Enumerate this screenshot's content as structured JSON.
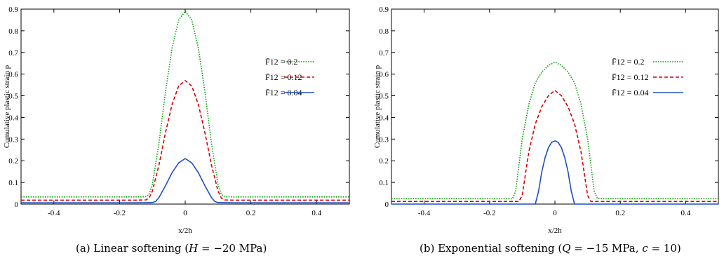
{
  "figure": {
    "captions": [
      {
        "prefix": "(a) Linear softening (",
        "var": "H",
        "rest": " = −20 MPa)"
      },
      {
        "prefix": "(b) Exponential softening (",
        "var": "Q",
        "rest": " = −15 MPa, ",
        "var2": "c",
        "rest2": " = 10)"
      }
    ]
  },
  "chart_data": [
    {
      "type": "line",
      "xlabel": "x/2h",
      "ylabel": "Cumulative plastic strain p",
      "xlim": [
        -0.5,
        0.5
      ],
      "ylim": [
        0,
        0.9
      ],
      "xticks": [
        "-0.4",
        "-0.2",
        "0",
        "0.2",
        "0.4"
      ],
      "yticks": [
        "0",
        "0.1",
        "0.2",
        "0.3",
        "0.4",
        "0.5",
        "0.6",
        "0.7",
        "0.8",
        "0.9"
      ],
      "grid": false,
      "legend_position": "right",
      "series": [
        {
          "name": "F̄12 = 0.2",
          "color": "#00a000",
          "dash": "dotted",
          "x": [
            -0.5,
            -0.15,
            -0.12,
            -0.11,
            -0.1,
            -0.08,
            -0.06,
            -0.04,
            -0.02,
            0,
            0.02,
            0.04,
            0.06,
            0.08,
            0.1,
            0.11,
            0.12,
            0.15,
            0.5
          ],
          "y": [
            0.033,
            0.033,
            0.034,
            0.045,
            0.09,
            0.28,
            0.52,
            0.72,
            0.85,
            0.89,
            0.85,
            0.72,
            0.52,
            0.28,
            0.09,
            0.045,
            0.034,
            0.033,
            0.033
          ]
        },
        {
          "name": "F̄12 = 0.12",
          "color": "#d40000",
          "dash": "dashed",
          "x": [
            -0.5,
            -0.15,
            -0.12,
            -0.11,
            -0.1,
            -0.08,
            -0.06,
            -0.04,
            -0.02,
            0,
            0.02,
            0.04,
            0.06,
            0.08,
            0.1,
            0.11,
            0.12,
            0.15,
            0.5
          ],
          "y": [
            0.018,
            0.018,
            0.019,
            0.028,
            0.06,
            0.18,
            0.33,
            0.46,
            0.545,
            0.57,
            0.545,
            0.46,
            0.33,
            0.18,
            0.06,
            0.028,
            0.019,
            0.018,
            0.018
          ]
        },
        {
          "name": "F̄12 = 0.04",
          "color": "#1f4fc0",
          "dash": "solid",
          "x": [
            -0.5,
            -0.15,
            -0.1,
            -0.09,
            -0.08,
            -0.06,
            -0.04,
            -0.02,
            0,
            0.02,
            0.04,
            0.06,
            0.08,
            0.09,
            0.1,
            0.15,
            0.5
          ],
          "y": [
            0.006,
            0.006,
            0.007,
            0.012,
            0.03,
            0.085,
            0.145,
            0.19,
            0.21,
            0.19,
            0.145,
            0.085,
            0.03,
            0.012,
            0.007,
            0.006,
            0.006
          ]
        }
      ]
    },
    {
      "type": "line",
      "xlabel": "x/2h",
      "ylabel": "Cumulative plastic strain p",
      "xlim": [
        -0.5,
        0.5
      ],
      "ylim": [
        0,
        0.9
      ],
      "xticks": [
        "-0.4",
        "-0.2",
        "0",
        "0.2",
        "0.4"
      ],
      "yticks": [
        "0",
        "0.1",
        "0.2",
        "0.3",
        "0.4",
        "0.5",
        "0.6",
        "0.7",
        "0.8",
        "0.9"
      ],
      "grid": false,
      "legend_position": "right",
      "series": [
        {
          "name": "F̄12 = 0.2",
          "color": "#00a000",
          "dash": "dotted",
          "x": [
            -0.5,
            -0.13,
            -0.12,
            -0.1,
            -0.08,
            -0.06,
            -0.04,
            -0.02,
            0,
            0.02,
            0.04,
            0.06,
            0.08,
            0.1,
            0.12,
            0.13,
            0.5
          ],
          "y": [
            0.025,
            0.025,
            0.06,
            0.3,
            0.46,
            0.56,
            0.61,
            0.64,
            0.655,
            0.64,
            0.61,
            0.56,
            0.46,
            0.3,
            0.06,
            0.025,
            0.025
          ]
        },
        {
          "name": "F̄12 = 0.12",
          "color": "#d40000",
          "dash": "dashed",
          "x": [
            -0.5,
            -0.11,
            -0.1,
            -0.09,
            -0.08,
            -0.06,
            -0.04,
            -0.02,
            0,
            0.02,
            0.04,
            0.06,
            0.08,
            0.09,
            0.1,
            0.11,
            0.5
          ],
          "y": [
            0.012,
            0.012,
            0.04,
            0.14,
            0.24,
            0.37,
            0.45,
            0.5,
            0.525,
            0.5,
            0.45,
            0.37,
            0.24,
            0.14,
            0.04,
            0.012,
            0.012
          ]
        },
        {
          "name": "F̄12 = 0.04",
          "color": "#1f4fc0",
          "dash": "solid",
          "x": [
            -0.5,
            -0.06,
            -0.05,
            -0.04,
            -0.03,
            -0.02,
            -0.01,
            0,
            0.01,
            0.02,
            0.03,
            0.04,
            0.05,
            0.06,
            0.5
          ],
          "y": [
            0,
            0,
            0.06,
            0.15,
            0.215,
            0.26,
            0.285,
            0.292,
            0.285,
            0.26,
            0.215,
            0.15,
            0.06,
            0,
            0
          ]
        }
      ]
    }
  ]
}
